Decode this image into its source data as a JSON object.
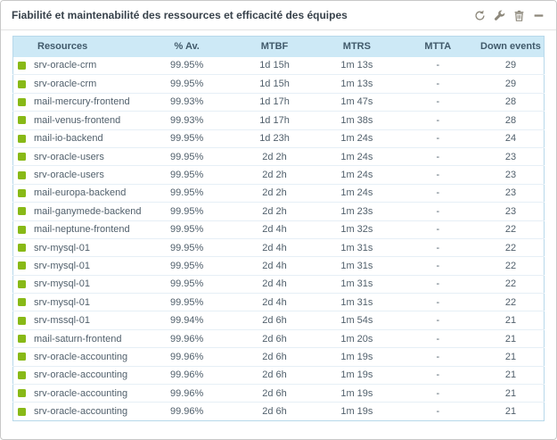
{
  "widget": {
    "title": "Fiabilité et maintenabilité des ressources et efficacité des équipes",
    "actions": [
      {
        "label": "refresh",
        "icon": "refresh-icon"
      },
      {
        "label": "configure",
        "icon": "wrench-icon"
      },
      {
        "label": "delete",
        "icon": "trash-icon"
      },
      {
        "label": "collapse",
        "icon": "minus-icon"
      }
    ]
  },
  "colors": {
    "status_ok": "#88b917",
    "table_header_bg": "#cde9f6",
    "table_border": "#b7d8ea",
    "header_text": "#415a6b",
    "cell_text": "#51606c",
    "icon_gray": "#8d887b"
  },
  "table": {
    "columns": [
      {
        "key": "name",
        "label": "Resources",
        "align": "left",
        "width": "24%"
      },
      {
        "key": "availability",
        "label": "% Av.",
        "align": "center",
        "width": "17.5%"
      },
      {
        "key": "mtbf",
        "label": "MTBF",
        "align": "center",
        "width": "15.5%"
      },
      {
        "key": "mtrs",
        "label": "MTRS",
        "align": "center",
        "width": "15.5%"
      },
      {
        "key": "mtta",
        "label": "MTTA",
        "align": "center",
        "width": "15%"
      },
      {
        "key": "down_events",
        "label": "Down events",
        "align": "center",
        "width": "12.5%"
      }
    ],
    "rows": [
      {
        "status": "ok",
        "name": "srv-oracle-crm",
        "availability": "99.95%",
        "mtbf": "1d 15h",
        "mtrs": "1m 13s",
        "mtta": "-",
        "down_events": "29"
      },
      {
        "status": "ok",
        "name": "srv-oracle-crm",
        "availability": "99.95%",
        "mtbf": "1d 15h",
        "mtrs": "1m 13s",
        "mtta": "-",
        "down_events": "29"
      },
      {
        "status": "ok",
        "name": "mail-mercury-frontend",
        "availability": "99.93%",
        "mtbf": "1d 17h",
        "mtrs": "1m 47s",
        "mtta": "-",
        "down_events": "28"
      },
      {
        "status": "ok",
        "name": "mail-venus-frontend",
        "availability": "99.93%",
        "mtbf": "1d 17h",
        "mtrs": "1m 38s",
        "mtta": "-",
        "down_events": "28"
      },
      {
        "status": "ok",
        "name": "mail-io-backend",
        "availability": "99.95%",
        "mtbf": "1d 23h",
        "mtrs": "1m 24s",
        "mtta": "-",
        "down_events": "24"
      },
      {
        "status": "ok",
        "name": "srv-oracle-users",
        "availability": "99.95%",
        "mtbf": "2d 2h",
        "mtrs": "1m 24s",
        "mtta": "-",
        "down_events": "23"
      },
      {
        "status": "ok",
        "name": "srv-oracle-users",
        "availability": "99.95%",
        "mtbf": "2d 2h",
        "mtrs": "1m 24s",
        "mtta": "-",
        "down_events": "23"
      },
      {
        "status": "ok",
        "name": "mail-europa-backend",
        "availability": "99.95%",
        "mtbf": "2d 2h",
        "mtrs": "1m 24s",
        "mtta": "-",
        "down_events": "23"
      },
      {
        "status": "ok",
        "name": "mail-ganymede-backend",
        "availability": "99.95%",
        "mtbf": "2d 2h",
        "mtrs": "1m 23s",
        "mtta": "-",
        "down_events": "23"
      },
      {
        "status": "ok",
        "name": "mail-neptune-frontend",
        "availability": "99.95%",
        "mtbf": "2d 4h",
        "mtrs": "1m 32s",
        "mtta": "-",
        "down_events": "22"
      },
      {
        "status": "ok",
        "name": "srv-mysql-01",
        "availability": "99.95%",
        "mtbf": "2d 4h",
        "mtrs": "1m 31s",
        "mtta": "-",
        "down_events": "22"
      },
      {
        "status": "ok",
        "name": "srv-mysql-01",
        "availability": "99.95%",
        "mtbf": "2d 4h",
        "mtrs": "1m 31s",
        "mtta": "-",
        "down_events": "22"
      },
      {
        "status": "ok",
        "name": "srv-mysql-01",
        "availability": "99.95%",
        "mtbf": "2d 4h",
        "mtrs": "1m 31s",
        "mtta": "-",
        "down_events": "22"
      },
      {
        "status": "ok",
        "name": "srv-mysql-01",
        "availability": "99.95%",
        "mtbf": "2d 4h",
        "mtrs": "1m 31s",
        "mtta": "-",
        "down_events": "22"
      },
      {
        "status": "ok",
        "name": "srv-mssql-01",
        "availability": "99.94%",
        "mtbf": "2d 6h",
        "mtrs": "1m 54s",
        "mtta": "-",
        "down_events": "21"
      },
      {
        "status": "ok",
        "name": "mail-saturn-frontend",
        "availability": "99.96%",
        "mtbf": "2d 6h",
        "mtrs": "1m 20s",
        "mtta": "-",
        "down_events": "21"
      },
      {
        "status": "ok",
        "name": "srv-oracle-accounting",
        "availability": "99.96%",
        "mtbf": "2d 6h",
        "mtrs": "1m 19s",
        "mtta": "-",
        "down_events": "21"
      },
      {
        "status": "ok",
        "name": "srv-oracle-accounting",
        "availability": "99.96%",
        "mtbf": "2d 6h",
        "mtrs": "1m 19s",
        "mtta": "-",
        "down_events": "21"
      },
      {
        "status": "ok",
        "name": "srv-oracle-accounting",
        "availability": "99.96%",
        "mtbf": "2d 6h",
        "mtrs": "1m 19s",
        "mtta": "-",
        "down_events": "21"
      },
      {
        "status": "ok",
        "name": "srv-oracle-accounting",
        "availability": "99.96%",
        "mtbf": "2d 6h",
        "mtrs": "1m 19s",
        "mtta": "-",
        "down_events": "21"
      }
    ]
  }
}
